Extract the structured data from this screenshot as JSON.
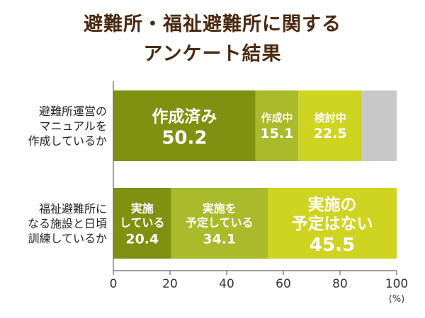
{
  "title_lines": [
    "避難所・福祉避難所に関する",
    "アンケート結果"
  ],
  "colors": {
    "title": "#4a2a10",
    "seg_dark": "#7f9110",
    "seg_mid": "#a9ba2b",
    "seg_light": "#cfd421",
    "seg_gray": "#c8c8c8",
    "axis": "#666666"
  },
  "chart_data": {
    "type": "bar",
    "orientation": "horizontal",
    "stacked": true,
    "xlim": [
      0,
      100
    ],
    "xticks": [
      "0",
      "20",
      "40",
      "60",
      "80",
      "100"
    ],
    "unit": "(%)",
    "grid": false,
    "categories": [
      {
        "lines": [
          "避難所運営の",
          "マニュアルを",
          "作成しているか"
        ]
      },
      {
        "lines": [
          "福祉避難所に",
          "なる施設と日頃",
          "訓練しているか"
        ]
      }
    ],
    "bars": [
      {
        "segments": [
          {
            "label_lines": [
              "作成済み"
            ],
            "value": 50.2,
            "value_text": "50.2",
            "color": "#7f9110",
            "size": "big"
          },
          {
            "label_lines": [
              "作成中"
            ],
            "value": 15.1,
            "value_text": "15.1",
            "color": "#a9ba2b",
            "size": "small"
          },
          {
            "label_lines": [
              "検討中"
            ],
            "value": 22.5,
            "value_text": "22.5",
            "color": "#cfd421",
            "size": "small"
          },
          {
            "label_lines": [],
            "value": 12.2,
            "value_text": "",
            "color": "#c8c8c8",
            "size": "small"
          }
        ]
      },
      {
        "segments": [
          {
            "label_lines": [
              "実施",
              "している"
            ],
            "value": 20.4,
            "value_text": "20.4",
            "color": "#7f9110",
            "size": "small"
          },
          {
            "label_lines": [
              "実施を",
              "予定している"
            ],
            "value": 34.1,
            "value_text": "34.1",
            "color": "#a9ba2b",
            "size": "small"
          },
          {
            "label_lines": [
              "実施の",
              "予定はない"
            ],
            "value": 45.5,
            "value_text": "45.5",
            "color": "#cfd421",
            "size": "big"
          }
        ]
      }
    ]
  }
}
